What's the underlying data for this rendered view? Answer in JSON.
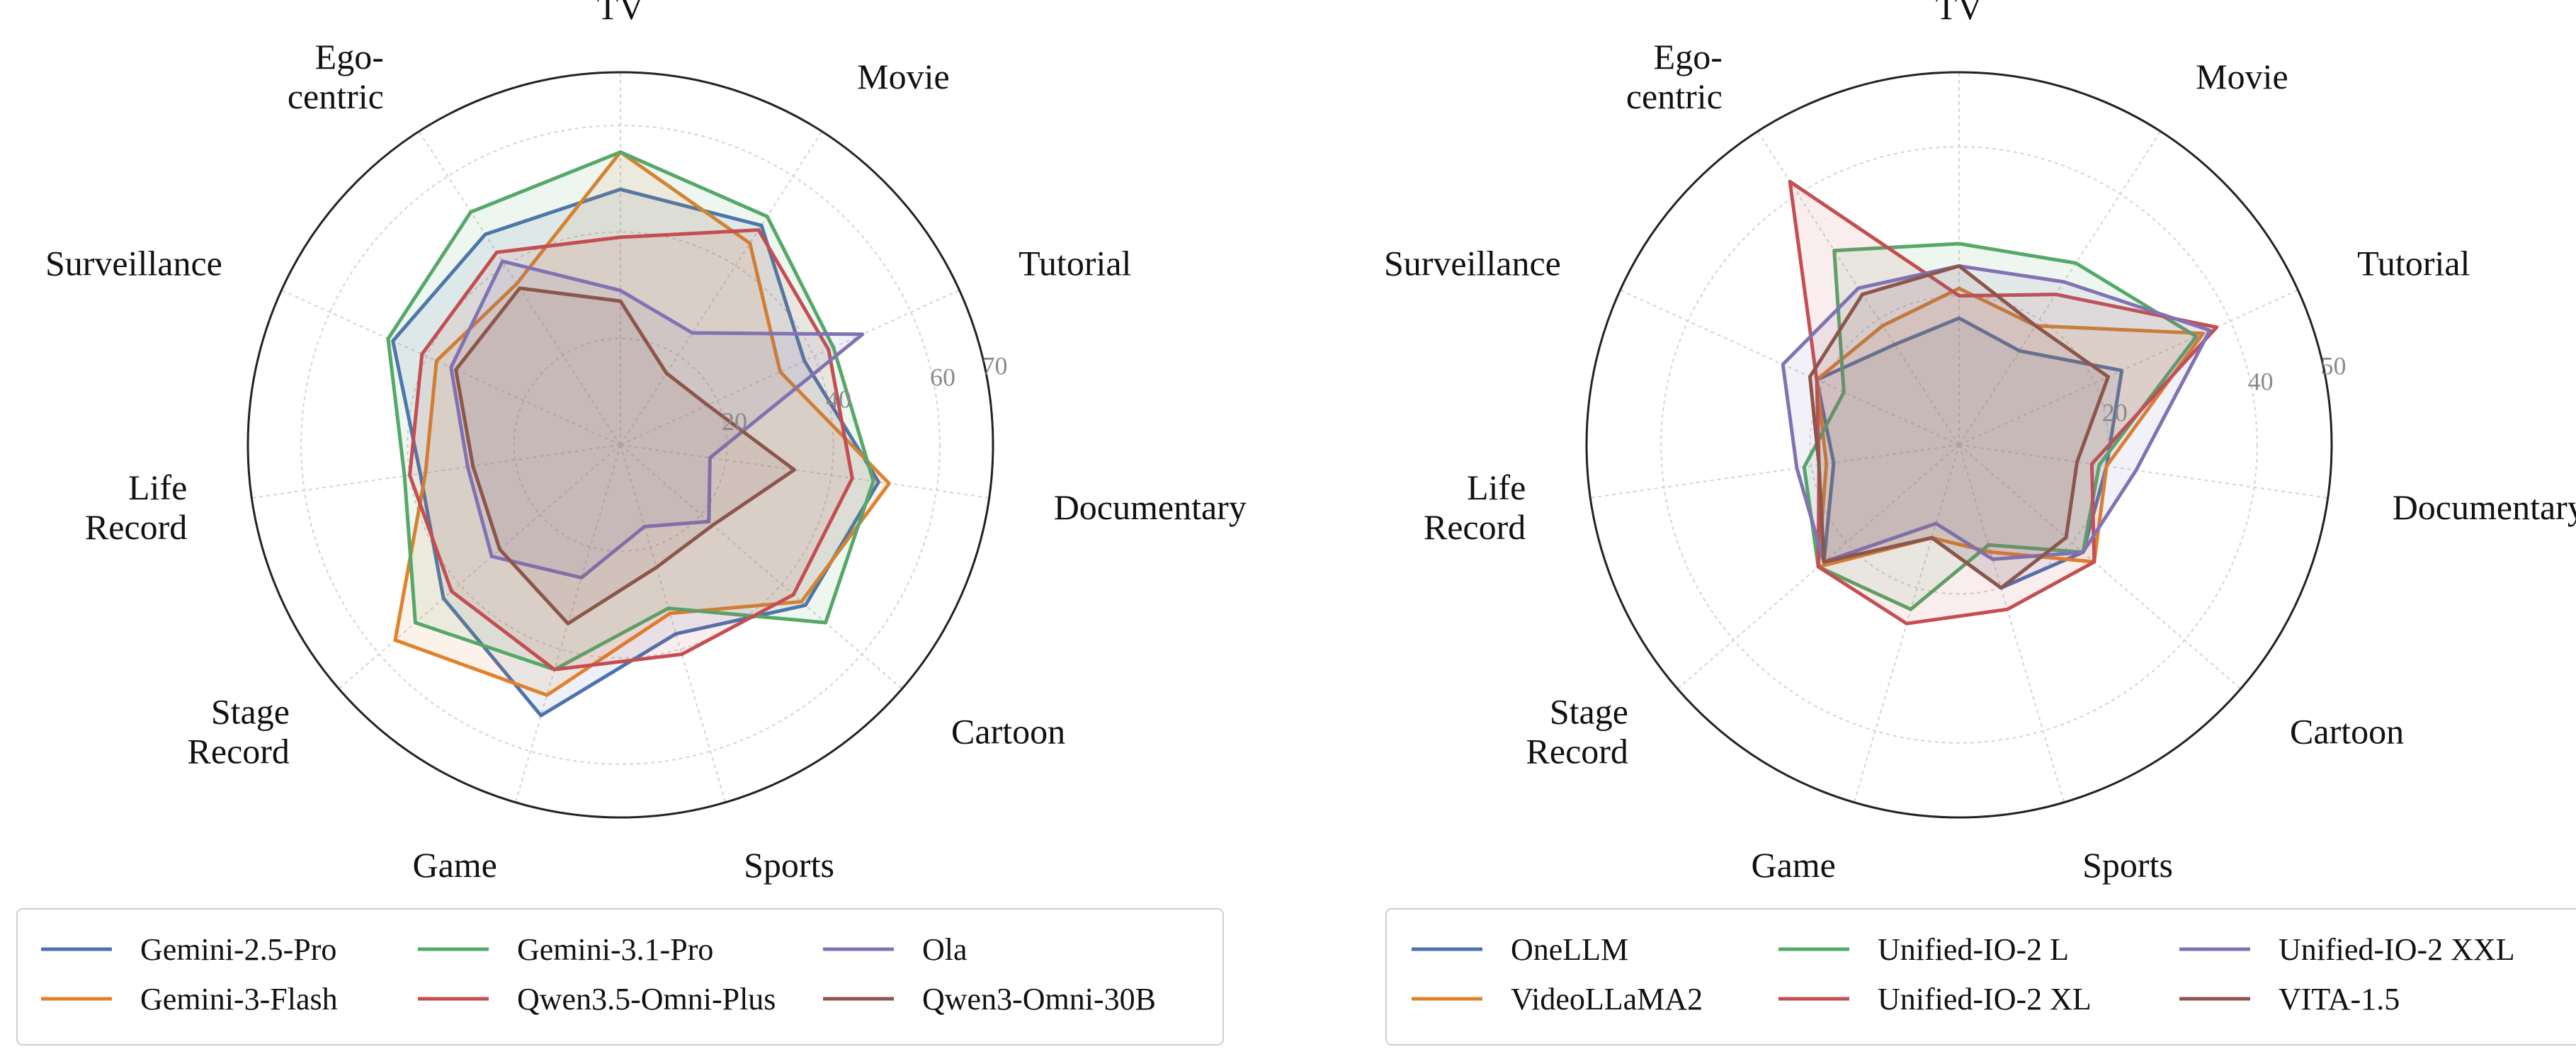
{
  "chart_data": [
    {
      "type": "radar",
      "title": "",
      "categories": [
        "TV",
        "Movie",
        "Tutorial",
        "Documentary",
        "Cartoon",
        "Sports",
        "Game",
        "Stage Record",
        "Life Record",
        "Surveillance",
        "Ego- centric"
      ],
      "category_lines": [
        [
          "TV"
        ],
        [
          "Movie"
        ],
        [
          "Tutorial"
        ],
        [
          "Documentary"
        ],
        [
          "Cartoon"
        ],
        [
          "Sports"
        ],
        [
          "Game"
        ],
        [
          "Stage",
          "Record"
        ],
        [
          "Life",
          "Record"
        ],
        [
          "Surveillance"
        ],
        [
          "Ego-",
          "centric"
        ]
      ],
      "rmax": 70,
      "rticks": [
        20,
        40,
        60,
        70
      ],
      "rtick_labels": [
        "20",
        "40",
        "60",
        "70"
      ],
      "grid": true,
      "legend_position": "bottom",
      "legend_columns": 3,
      "series": [
        {
          "name": "Gemini-2.5-Pro",
          "color": "#4c72b0",
          "values": [
            48,
            49,
            38,
            49,
            46,
            37,
            53,
            44,
            38,
            47,
            47
          ]
        },
        {
          "name": "Gemini-3-Flash",
          "color": "#e1812c",
          "values": [
            55,
            45,
            33,
            51,
            45,
            33,
            49,
            56,
            37,
            38,
            36
          ]
        },
        {
          "name": "Gemini-3.1-Pro",
          "color": "#55a868",
          "values": [
            55,
            51,
            44,
            48,
            51,
            32,
            44,
            51,
            41,
            48,
            52
          ]
        },
        {
          "name": "Qwen3.5-Omni-Plus",
          "color": "#c44e52",
          "values": [
            39,
            48,
            43,
            44,
            43,
            41,
            44,
            42,
            40,
            41,
            43
          ]
        },
        {
          "name": "Ola",
          "color": "#8172b3",
          "values": [
            29,
            25,
            50,
            17,
            22,
            16,
            26,
            32,
            29,
            35,
            41
          ]
        },
        {
          "name": "Qwen3-Omni-30B",
          "color": "#8c564b",
          "values": [
            27,
            16,
            18,
            33,
            23,
            24,
            35,
            30,
            28,
            34,
            35
          ]
        }
      ]
    },
    {
      "type": "radar",
      "title": "",
      "categories": [
        "TV",
        "Movie",
        "Tutorial",
        "Documentary",
        "Cartoon",
        "Sports",
        "Game",
        "Stage Record",
        "Life Record",
        "Surveillance",
        "Ego- centric"
      ],
      "category_lines": [
        [
          "TV"
        ],
        [
          "Movie"
        ],
        [
          "Tutorial"
        ],
        [
          "Documentary"
        ],
        [
          "Cartoon"
        ],
        [
          "Sports"
        ],
        [
          "Game"
        ],
        [
          "Stage",
          "Record"
        ],
        [
          "Life",
          "Record"
        ],
        [
          "Surveillance"
        ],
        [
          "Ego-",
          "centric"
        ]
      ],
      "rmax": 50,
      "rticks": [
        20,
        40,
        50
      ],
      "rtick_labels": [
        "20",
        "40",
        "50"
      ],
      "grid": true,
      "legend_position": "bottom",
      "legend_columns": 3,
      "series": [
        {
          "name": "OneLLM",
          "color": "#4c72b0",
          "values": [
            17,
            15,
            24,
            20,
            22,
            20,
            13,
            24,
            17,
            21,
            16
          ]
        },
        {
          "name": "VideoLLaMA2",
          "color": "#e1812c",
          "values": [
            21,
            19,
            36,
            20,
            24,
            15,
            13,
            25,
            18,
            21,
            19
          ]
        },
        {
          "name": "Unified-IO-2 L",
          "color": "#55a868",
          "values": [
            27,
            29,
            35,
            19,
            22,
            14,
            23,
            25,
            21,
            17,
            31
          ]
        },
        {
          "name": "Unified-IO-2 XL",
          "color": "#c44e52",
          "values": [
            20,
            24,
            38,
            18,
            24,
            23,
            25,
            25,
            19,
            21,
            42
          ]
        },
        {
          "name": "Unified-IO-2 XXL",
          "color": "#8172b3",
          "values": [
            24,
            26,
            37,
            24,
            22,
            16,
            11,
            24,
            22,
            26,
            25
          ]
        },
        {
          "name": "VITA-1.5",
          "color": "#8c564b",
          "values": [
            24,
            19,
            22,
            16,
            19,
            20,
            13,
            24,
            19,
            22,
            24
          ]
        }
      ]
    }
  ]
}
